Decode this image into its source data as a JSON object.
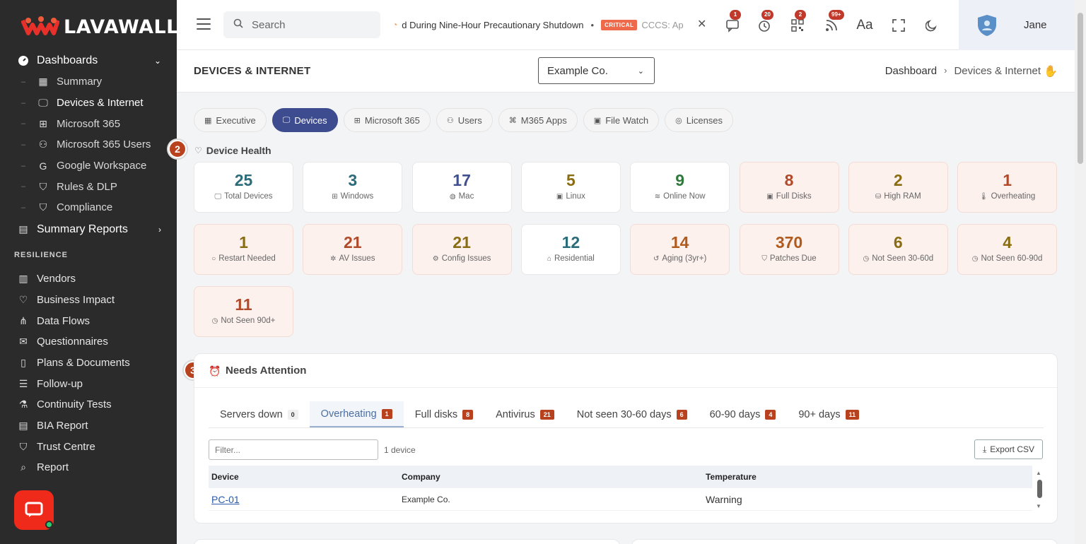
{
  "brand": {
    "name": "LAVAWALL",
    "reg": "®"
  },
  "sidebar": {
    "groups": [
      {
        "label": "Dashboards",
        "icon": "gauge-icon"
      }
    ],
    "dashboards": [
      {
        "label": "Summary",
        "icon": "grid-icon"
      },
      {
        "label": "Devices & Internet",
        "icon": "monitor-icon",
        "active": true
      },
      {
        "label": "Microsoft 365",
        "icon": "windows-icon"
      },
      {
        "label": "Microsoft 365 Users",
        "icon": "users-icon"
      },
      {
        "label": "Google Workspace",
        "icon": "google-icon"
      },
      {
        "label": "Rules & DLP",
        "icon": "shield-icon"
      },
      {
        "label": "Compliance",
        "icon": "shield-check-icon"
      }
    ],
    "summary_reports": "Summary Reports",
    "section_resilience": "RESILIENCE",
    "resilience": [
      {
        "label": "Vendors",
        "icon": "building-icon"
      },
      {
        "label": "Business Impact",
        "icon": "heart-pulse-icon"
      },
      {
        "label": "Data Flows",
        "icon": "flow-icon"
      },
      {
        "label": "Questionnaires",
        "icon": "mail-icon"
      },
      {
        "label": "Plans & Documents",
        "icon": "document-icon"
      },
      {
        "label": "Follow-up",
        "icon": "list-icon"
      },
      {
        "label": "Continuity Tests",
        "icon": "flask-icon"
      },
      {
        "label": "BIA Report",
        "icon": "chart-icon"
      },
      {
        "label": "Trust Centre",
        "icon": "shield-icon"
      },
      {
        "label": "Report",
        "icon": "search-report-icon"
      }
    ]
  },
  "topbar": {
    "search_placeholder": "Search",
    "ticker_text": "d During Nine-Hour Precautionary Shutdown",
    "ticker_badge": "CRITICAL",
    "ticker_text2": "CCCS: Ap",
    "badges": {
      "messages": "1",
      "timer": "20",
      "qr": "2",
      "feeds": "99+"
    },
    "user_name": "Jane"
  },
  "header": {
    "title": "DEVICES & INTERNET",
    "company": "Example Co.",
    "breadcrumb": [
      "Dashboard",
      "Devices & Internet"
    ]
  },
  "tabs": [
    {
      "label": "Executive",
      "icon": "grid-icon"
    },
    {
      "label": "Devices",
      "icon": "monitor-icon",
      "active": true
    },
    {
      "label": "Microsoft 365",
      "icon": "windows-icon"
    },
    {
      "label": "Users",
      "icon": "users-icon"
    },
    {
      "label": "M365 Apps",
      "icon": "apps-icon"
    },
    {
      "label": "File Watch",
      "icon": "file-icon"
    },
    {
      "label": "Licenses",
      "icon": "license-icon"
    }
  ],
  "device_health": {
    "step": "2",
    "title": "Device Health",
    "cards": [
      {
        "value": "25",
        "label": "Total Devices",
        "icon": "monitor-icon",
        "color": "#2c6b7a"
      },
      {
        "value": "3",
        "label": "Windows",
        "icon": "windows-icon",
        "color": "#2c6b7a"
      },
      {
        "value": "17",
        "label": "Mac",
        "icon": "apple-icon",
        "color": "#3f4f8f"
      },
      {
        "value": "5",
        "label": "Linux",
        "icon": "linux-icon",
        "color": "#8a6d12"
      },
      {
        "value": "9",
        "label": "Online Now",
        "icon": "wifi-icon",
        "color": "#2f7a3a"
      },
      {
        "value": "8",
        "label": "Full Disks",
        "icon": "disk-icon",
        "color": "#b04a2a",
        "warn": true
      },
      {
        "value": "2",
        "label": "High RAM",
        "icon": "memory-icon",
        "color": "#8a6d12",
        "warn": true
      },
      {
        "value": "1",
        "label": "Overheating",
        "icon": "thermometer-icon",
        "color": "#b04a2a",
        "warn": true
      },
      {
        "value": "1",
        "label": "Restart Needed",
        "icon": "restart-icon",
        "color": "#8a6d12",
        "warn": true
      },
      {
        "value": "21",
        "label": "AV Issues",
        "icon": "bug-icon",
        "color": "#b04a2a",
        "warn": true
      },
      {
        "value": "21",
        "label": "Config Issues",
        "icon": "gear-icon",
        "color": "#8a6d12",
        "warn": true
      },
      {
        "value": "12",
        "label": "Residential",
        "icon": "home-icon",
        "color": "#2c6b7a"
      },
      {
        "value": "14",
        "label": "Aging (3yr+)",
        "icon": "history-icon",
        "color": "#b05a1e",
        "warn": true
      },
      {
        "value": "370",
        "label": "Patches Due",
        "icon": "shield-icon",
        "color": "#b05a1e",
        "warn": true
      },
      {
        "value": "6",
        "label": "Not Seen 30-60d",
        "icon": "clock-icon",
        "color": "#8a6d12",
        "warn": true
      },
      {
        "value": "4",
        "label": "Not Seen 60-90d",
        "icon": "clock-icon",
        "color": "#8a6d12",
        "warn": true
      },
      {
        "value": "11",
        "label": "Not Seen 90d+",
        "icon": "clock-icon",
        "color": "#b04a2a",
        "warn": true
      }
    ]
  },
  "needs_attention": {
    "step": "3",
    "title": "Needs Attention",
    "tabs": [
      {
        "label": "Servers down",
        "count": "0"
      },
      {
        "label": "Overheating",
        "count": "1",
        "active": true
      },
      {
        "label": "Full disks",
        "count": "8"
      },
      {
        "label": "Antivirus",
        "count": "21"
      },
      {
        "label": "Not seen 30-60 days",
        "count": "6"
      },
      {
        "label": "60-90 days",
        "count": "4"
      },
      {
        "label": "90+ days",
        "count": "11"
      }
    ],
    "filter_placeholder": "Filter...",
    "result_count": "1 device",
    "export_label": "Export CSV",
    "columns": [
      "Device",
      "Company",
      "Temperature"
    ],
    "rows": [
      {
        "device": "PC-01",
        "company": "Example Co.",
        "temperature": "Warning"
      }
    ]
  }
}
